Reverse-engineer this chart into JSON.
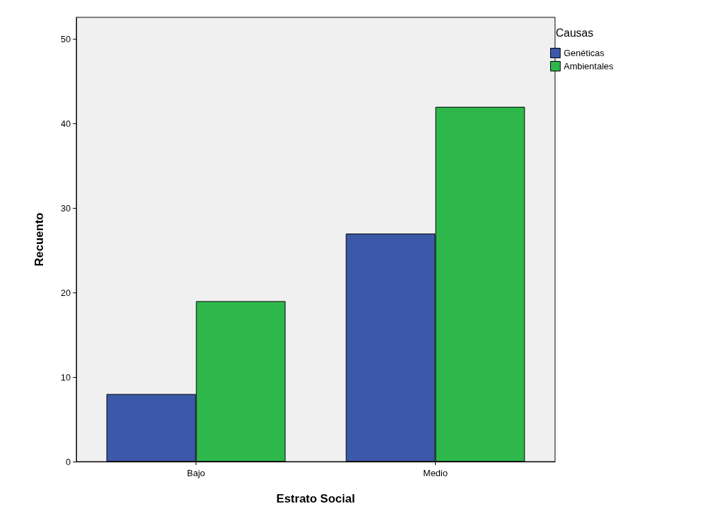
{
  "chart_data": {
    "type": "bar",
    "xlabel": "Estrato Social",
    "ylabel": "Recuento",
    "legend_title": "Causas",
    "categories": [
      "Bajo",
      "Medio"
    ],
    "series": [
      {
        "name": "Genéticas",
        "color": "#3c58a8",
        "values": [
          8,
          27
        ]
      },
      {
        "name": "Ambientales",
        "color": "#2eb84b",
        "values": [
          19,
          42
        ]
      }
    ],
    "ylim": [
      0,
      52.6
    ],
    "yticks": [
      0,
      10,
      20,
      30,
      40,
      50
    ],
    "grid": false,
    "legend": "top right"
  }
}
